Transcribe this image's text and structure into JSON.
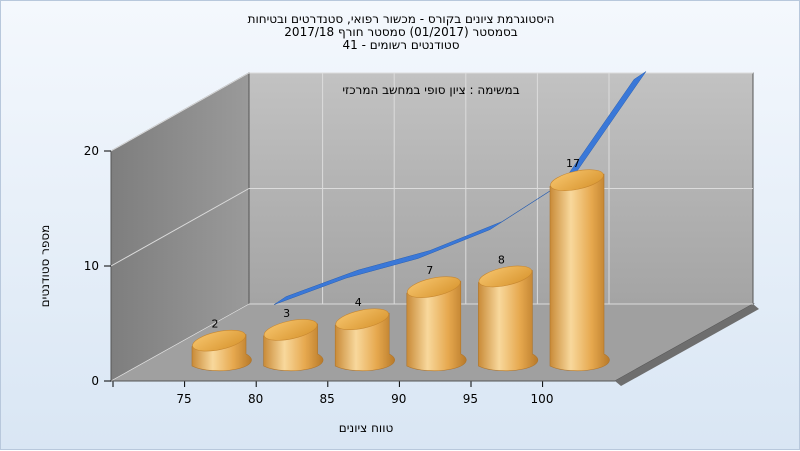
{
  "chart_data": {
    "type": "bar",
    "title_lines": [
      "היסטוגרמת ציונים בקורס - מכשור רפואי, סטנדרטים ובטיחות",
      "בסמסטר  (01/2017)  סמסטר חורף 2017/18",
      "סטודנטים רשומים - 41"
    ],
    "annotation": "במשימה : ציון סופי במחשב המרכזי",
    "xlabel": "טווח ציונים",
    "ylabel": "מספר סטודנטים",
    "categories": [
      "75",
      "80",
      "85",
      "90",
      "95",
      "100"
    ],
    "values": [
      2,
      3,
      4,
      7,
      8,
      17
    ],
    "curve_values": [
      1.5,
      3.8,
      5.5,
      8.0,
      12.0,
      21.0
    ],
    "yticks": [
      "0",
      "10",
      "20"
    ],
    "ylim": [
      0,
      20
    ],
    "colors": {
      "bar": "#e6a84e",
      "bar_light": "#f8d89c",
      "bar_dark": "#b87a2a",
      "curve": "#3a78d8",
      "wall_back": "#a9a9a9",
      "wall_left": "#8a8a8a",
      "floor": "#9a9a9a"
    },
    "grid": true
  }
}
